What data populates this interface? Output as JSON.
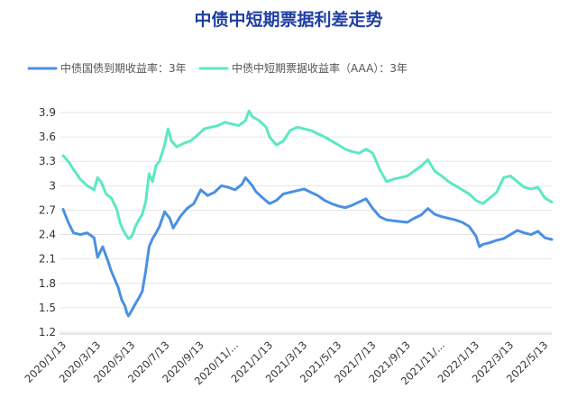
{
  "chart_data": {
    "type": "line",
    "title": "中债中短期票据利差走势",
    "xlabel": "",
    "ylabel": "",
    "ylim": [
      1.2,
      3.9
    ],
    "y_ticks": [
      "3.9",
      "3.6",
      "3.3",
      "3",
      "2.7",
      "2.4",
      "2.1",
      "1.8",
      "1.5",
      "1.2"
    ],
    "x_tick_labels": [
      "2020/1/13",
      "2020/3/13",
      "2020/5/13",
      "2020/7/13",
      "2020/9/13",
      "2020/11/...",
      "2021/1/13",
      "2021/3/13",
      "2021/5/13",
      "2021/7/13",
      "2021/9/13",
      "2021/11/...",
      "2022/1/13",
      "2022/3/13",
      "2022/5/13"
    ],
    "x_months": [
      0,
      2,
      4,
      6,
      8,
      10,
      12,
      14,
      16,
      18,
      20,
      22,
      24,
      26,
      28
    ],
    "grid": true,
    "legend_position": "top-left",
    "series": [
      {
        "name": "中债国债到期收益率：3年",
        "color": "#4a90e2",
        "x": [
          0,
          0.3,
          0.6,
          1,
          1.4,
          1.8,
          2.0,
          2.3,
          2.6,
          2.8,
          3.0,
          3.2,
          3.4,
          3.6,
          3.7,
          3.8,
          4.0,
          4.2,
          4.4,
          4.6,
          4.8,
          5.0,
          5.2,
          5.4,
          5.6,
          5.9,
          6.2,
          6.4,
          6.8,
          7.2,
          7.6,
          8.0,
          8.4,
          8.8,
          9.2,
          9.6,
          10.0,
          10.4,
          10.6,
          10.8,
          11.0,
          11.2,
          11.6,
          12.0,
          12.4,
          12.8,
          13.2,
          13.6,
          14.0,
          14.4,
          14.8,
          15.2,
          15.6,
          16.0,
          16.4,
          16.8,
          17.2,
          17.6,
          18.0,
          18.4,
          18.8,
          19.2,
          19.6,
          20.0,
          20.4,
          20.8,
          21.2,
          21.6,
          22.0,
          22.4,
          22.8,
          23.2,
          23.6,
          24.0,
          24.2,
          24.4,
          24.8,
          25.2,
          25.6,
          26.0,
          26.4,
          26.8,
          27.2,
          27.6,
          28.0,
          28.4
        ],
        "values": [
          2.71,
          2.55,
          2.42,
          2.4,
          2.42,
          2.36,
          2.12,
          2.25,
          2.08,
          1.95,
          1.85,
          1.75,
          1.6,
          1.52,
          1.44,
          1.4,
          1.47,
          1.55,
          1.62,
          1.7,
          1.95,
          2.25,
          2.35,
          2.42,
          2.5,
          2.68,
          2.6,
          2.48,
          2.62,
          2.72,
          2.78,
          2.95,
          2.88,
          2.92,
          3.0,
          2.98,
          2.95,
          3.02,
          3.1,
          3.05,
          3.0,
          2.93,
          2.85,
          2.78,
          2.82,
          2.9,
          2.92,
          2.94,
          2.96,
          2.92,
          2.88,
          2.82,
          2.78,
          2.75,
          2.73,
          2.76,
          2.8,
          2.84,
          2.72,
          2.62,
          2.58,
          2.57,
          2.56,
          2.55,
          2.6,
          2.64,
          2.72,
          2.65,
          2.62,
          2.6,
          2.58,
          2.55,
          2.5,
          2.38,
          2.25,
          2.28,
          2.3,
          2.33,
          2.35,
          2.4,
          2.45,
          2.42,
          2.4,
          2.44,
          2.36,
          2.34
        ]
      },
      {
        "name": "中债中短期票据收益率（AAA）：3年",
        "color": "#5ce8c3",
        "x": [
          0,
          0.3,
          0.6,
          1,
          1.4,
          1.8,
          2.0,
          2.2,
          2.5,
          2.8,
          3.1,
          3.3,
          3.5,
          3.7,
          3.8,
          4.0,
          4.2,
          4.4,
          4.6,
          4.8,
          5.0,
          5.2,
          5.4,
          5.6,
          5.9,
          6.1,
          6.3,
          6.6,
          7.0,
          7.4,
          7.8,
          8.2,
          8.6,
          9.0,
          9.4,
          9.8,
          10.2,
          10.6,
          10.8,
          11.0,
          11.4,
          11.8,
          12.0,
          12.4,
          12.8,
          13.2,
          13.6,
          14.0,
          14.4,
          14.8,
          15.2,
          15.6,
          16.0,
          16.4,
          16.8,
          17.2,
          17.6,
          18.0,
          18.4,
          18.8,
          19.2,
          19.6,
          20.0,
          20.4,
          20.8,
          21.2,
          21.6,
          22.0,
          22.4,
          22.8,
          23.2,
          23.6,
          24.0,
          24.4,
          24.8,
          25.2,
          25.6,
          26.0,
          26.4,
          26.8,
          27.2,
          27.6,
          28.0,
          28.4
        ],
        "values": [
          3.37,
          3.3,
          3.2,
          3.08,
          3.0,
          2.95,
          3.1,
          3.05,
          2.9,
          2.85,
          2.72,
          2.55,
          2.45,
          2.38,
          2.35,
          2.38,
          2.5,
          2.58,
          2.65,
          2.8,
          3.15,
          3.05,
          3.25,
          3.3,
          3.5,
          3.7,
          3.55,
          3.48,
          3.52,
          3.55,
          3.62,
          3.7,
          3.72,
          3.74,
          3.78,
          3.76,
          3.74,
          3.8,
          3.92,
          3.85,
          3.8,
          3.72,
          3.6,
          3.5,
          3.55,
          3.68,
          3.72,
          3.7,
          3.68,
          3.64,
          3.6,
          3.55,
          3.5,
          3.45,
          3.42,
          3.4,
          3.45,
          3.4,
          3.2,
          3.05,
          3.08,
          3.1,
          3.12,
          3.18,
          3.24,
          3.32,
          3.18,
          3.12,
          3.05,
          3.0,
          2.95,
          2.9,
          2.82,
          2.78,
          2.85,
          2.92,
          3.1,
          3.12,
          3.05,
          2.98,
          2.96,
          2.98,
          2.85,
          2.8
        ]
      }
    ]
  }
}
